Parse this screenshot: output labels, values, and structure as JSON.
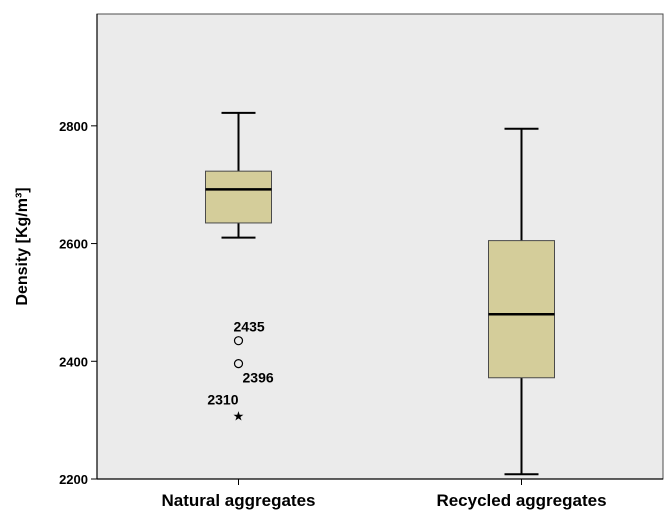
{
  "chart_data": {
    "type": "boxplot",
    "title": "",
    "xlabel": "",
    "ylabel": "Density [Kg/m³]",
    "ylim": [
      2200,
      2990
    ],
    "yticks": [
      2200,
      2400,
      2600,
      2800
    ],
    "grid": false,
    "colors": {
      "plot_background": "#ebebeb",
      "box_fill": "#d4cd9a",
      "stroke": "#000000"
    },
    "categories": [
      "Natural aggregates",
      "Recycled aggregates"
    ],
    "series": [
      {
        "category": "Natural aggregates",
        "min": 2610,
        "q1": 2635,
        "median": 2692,
        "q3": 2723,
        "max": 2822,
        "outliers": [
          {
            "value": 2435,
            "marker": "circle",
            "label": "2435"
          },
          {
            "value": 2396,
            "marker": "circle",
            "label": "2396"
          },
          {
            "value": 2310,
            "marker": "star",
            "label": "2310"
          }
        ]
      },
      {
        "category": "Recycled aggregates",
        "min": 2208,
        "q1": 2372,
        "median": 2480,
        "q3": 2605,
        "max": 2795,
        "outliers": []
      }
    ]
  }
}
